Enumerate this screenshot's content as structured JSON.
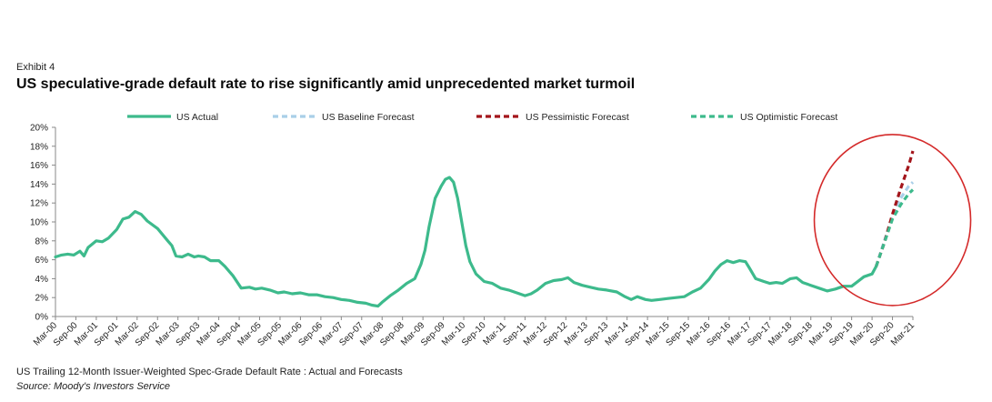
{
  "header": {
    "exhibit": "Exhibit 4",
    "title": "US speculative-grade default rate to rise significantly amid unprecedented market turmoil"
  },
  "footer": {
    "note": "US Trailing 12-Month Issuer-Weighted Spec-Grade Default Rate : Actual and Forecasts",
    "source": "Source: Moody's Investors Service"
  },
  "colors": {
    "actual": "#3dba8c",
    "baseline": "#a9cfe8",
    "pessimistic": "#a3151b",
    "optimistic": "#3dba8c",
    "highlight_circle": "#d42a2a",
    "axis": "#888888"
  },
  "chart_data": {
    "type": "line",
    "title": "",
    "xlabel": "",
    "ylabel": "",
    "ylim": [
      0,
      20
    ],
    "y_ticks": [
      "0%",
      "2%",
      "4%",
      "6%",
      "8%",
      "10%",
      "12%",
      "14%",
      "16%",
      "18%",
      "20%"
    ],
    "x_tick_labels": [
      "Mar-00",
      "Sep-00",
      "Mar-01",
      "Sep-01",
      "Mar-02",
      "Sep-02",
      "Mar-03",
      "Sep-03",
      "Mar-04",
      "Sep-04",
      "Mar-05",
      "Sep-05",
      "Mar-06",
      "Sep-06",
      "Mar-07",
      "Sep-07",
      "Mar-08",
      "Sep-08",
      "Mar-09",
      "Sep-09",
      "Mar-10",
      "Sep-10",
      "Mar-11",
      "Sep-11",
      "Mar-12",
      "Sep-12",
      "Mar-13",
      "Sep-13",
      "Mar-14",
      "Sep-14",
      "Mar-15",
      "Sep-15",
      "Mar-16",
      "Sep-16",
      "Mar-17",
      "Sep-17",
      "Mar-18",
      "Sep-18",
      "Mar-19",
      "Sep-19",
      "Mar-20",
      "Sep-20",
      "Mar-21"
    ],
    "legend": [
      "US Actual",
      "US Baseline Forecast",
      "US Pessimistic Forecast",
      "US Optimistic Forecast"
    ],
    "legend_position": "top",
    "x_unit": "half-year periods since Mar-00",
    "series": [
      {
        "name": "US Actual",
        "style": "solid",
        "points": [
          [
            0,
            6.3
          ],
          [
            0.3,
            6.5
          ],
          [
            0.6,
            6.6
          ],
          [
            0.9,
            6.5
          ],
          [
            1.2,
            6.9
          ],
          [
            1.4,
            6.4
          ],
          [
            1.6,
            7.3
          ],
          [
            2.0,
            8.0
          ],
          [
            2.3,
            7.9
          ],
          [
            2.6,
            8.3
          ],
          [
            3.0,
            9.2
          ],
          [
            3.3,
            10.3
          ],
          [
            3.6,
            10.5
          ],
          [
            3.9,
            11.1
          ],
          [
            4.2,
            10.8
          ],
          [
            4.5,
            10.1
          ],
          [
            5.0,
            9.3
          ],
          [
            5.5,
            8.0
          ],
          [
            5.7,
            7.5
          ],
          [
            5.9,
            6.4
          ],
          [
            6.2,
            6.3
          ],
          [
            6.5,
            6.6
          ],
          [
            6.8,
            6.3
          ],
          [
            7.0,
            6.4
          ],
          [
            7.3,
            6.3
          ],
          [
            7.6,
            5.9
          ],
          [
            8.0,
            5.9
          ],
          [
            8.3,
            5.3
          ],
          [
            8.7,
            4.3
          ],
          [
            9.1,
            3.0
          ],
          [
            9.5,
            3.1
          ],
          [
            9.8,
            2.9
          ],
          [
            10.1,
            3.0
          ],
          [
            10.5,
            2.8
          ],
          [
            10.9,
            2.5
          ],
          [
            11.2,
            2.6
          ],
          [
            11.6,
            2.4
          ],
          [
            12.0,
            2.5
          ],
          [
            12.4,
            2.3
          ],
          [
            12.8,
            2.3
          ],
          [
            13.2,
            2.1
          ],
          [
            13.6,
            2.0
          ],
          [
            14.0,
            1.8
          ],
          [
            14.4,
            1.7
          ],
          [
            14.8,
            1.5
          ],
          [
            15.2,
            1.4
          ],
          [
            15.5,
            1.2
          ],
          [
            15.8,
            1.1
          ],
          [
            16.0,
            1.5
          ],
          [
            16.4,
            2.2
          ],
          [
            16.8,
            2.8
          ],
          [
            17.2,
            3.5
          ],
          [
            17.6,
            4.0
          ],
          [
            17.9,
            5.5
          ],
          [
            18.1,
            7.0
          ],
          [
            18.3,
            9.5
          ],
          [
            18.6,
            12.5
          ],
          [
            18.9,
            13.8
          ],
          [
            19.1,
            14.5
          ],
          [
            19.3,
            14.7
          ],
          [
            19.5,
            14.2
          ],
          [
            19.7,
            12.5
          ],
          [
            19.9,
            10.0
          ],
          [
            20.1,
            7.5
          ],
          [
            20.3,
            5.8
          ],
          [
            20.6,
            4.5
          ],
          [
            21.0,
            3.7
          ],
          [
            21.4,
            3.5
          ],
          [
            21.8,
            3.0
          ],
          [
            22.2,
            2.8
          ],
          [
            22.6,
            2.5
          ],
          [
            23.0,
            2.2
          ],
          [
            23.3,
            2.4
          ],
          [
            23.6,
            2.8
          ],
          [
            24.0,
            3.5
          ],
          [
            24.4,
            3.8
          ],
          [
            24.8,
            3.9
          ],
          [
            25.1,
            4.1
          ],
          [
            25.4,
            3.6
          ],
          [
            25.8,
            3.3
          ],
          [
            26.2,
            3.1
          ],
          [
            26.6,
            2.9
          ],
          [
            27.0,
            2.8
          ],
          [
            27.5,
            2.6
          ],
          [
            27.9,
            2.1
          ],
          [
            28.2,
            1.8
          ],
          [
            28.5,
            2.1
          ],
          [
            28.9,
            1.8
          ],
          [
            29.2,
            1.7
          ],
          [
            29.6,
            1.8
          ],
          [
            30.0,
            1.9
          ],
          [
            30.4,
            2.0
          ],
          [
            30.8,
            2.1
          ],
          [
            31.2,
            2.6
          ],
          [
            31.6,
            3.0
          ],
          [
            32.0,
            3.9
          ],
          [
            32.3,
            4.8
          ],
          [
            32.6,
            5.5
          ],
          [
            32.9,
            5.9
          ],
          [
            33.2,
            5.7
          ],
          [
            33.5,
            5.9
          ],
          [
            33.8,
            5.8
          ],
          [
            34.0,
            5.1
          ],
          [
            34.3,
            4.0
          ],
          [
            34.7,
            3.7
          ],
          [
            35.0,
            3.5
          ],
          [
            35.3,
            3.6
          ],
          [
            35.6,
            3.5
          ],
          [
            36.0,
            4.0
          ],
          [
            36.3,
            4.1
          ],
          [
            36.6,
            3.6
          ],
          [
            37.0,
            3.3
          ],
          [
            37.4,
            3.0
          ],
          [
            37.8,
            2.7
          ],
          [
            38.2,
            2.9
          ],
          [
            38.6,
            3.2
          ],
          [
            39.0,
            3.2
          ],
          [
            39.3,
            3.7
          ],
          [
            39.6,
            4.2
          ],
          [
            40.0,
            4.5
          ],
          [
            40.2,
            5.3
          ]
        ]
      },
      {
        "name": "US Baseline Forecast",
        "style": "dashed",
        "points": [
          [
            40.2,
            5.3
          ],
          [
            40.6,
            8.0
          ],
          [
            41.0,
            10.5
          ],
          [
            41.4,
            12.5
          ],
          [
            41.8,
            13.8
          ],
          [
            42.0,
            14.2
          ]
        ]
      },
      {
        "name": "US Pessimistic Forecast",
        "style": "dashed",
        "points": [
          [
            40.2,
            5.3
          ],
          [
            40.6,
            7.8
          ],
          [
            41.0,
            10.8
          ],
          [
            41.4,
            13.5
          ],
          [
            41.8,
            16.0
          ],
          [
            42.0,
            17.5
          ]
        ]
      },
      {
        "name": "US Optimistic Forecast",
        "style": "dashed",
        "points": [
          [
            40.2,
            5.3
          ],
          [
            40.6,
            7.8
          ],
          [
            41.0,
            10.3
          ],
          [
            41.4,
            11.8
          ],
          [
            41.8,
            13.0
          ],
          [
            42.0,
            13.4
          ]
        ]
      }
    ],
    "annotations": [
      "red circle highlighting the 2020–2021 forecast surge"
    ]
  }
}
